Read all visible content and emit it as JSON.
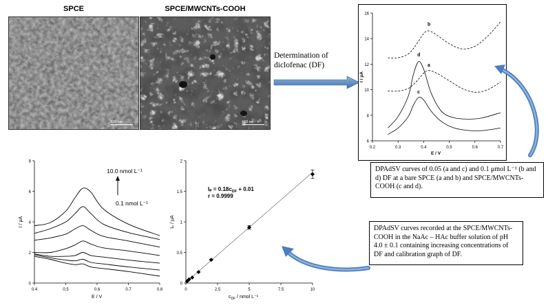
{
  "sem": {
    "left_title": "SPCE",
    "right_title": "SPCE/MWCNTs-COOH",
    "scale_label": "500 nm"
  },
  "arrow_label": "Determination of diclofenac (DF)",
  "caption_top": "DPAdSV curves of  0.05 (a and c) and 0.1 μmol  L⁻¹ (b and d) DF  at a bare SPCE (a and b) and SPCE/MWCNTs-COOH (c and d).",
  "caption_bottom": "DPAdSV curves recorded at the SPCE/MWCNTs-COOH in the NaAc – HAc buffer solution  of  pH 4.0 ± 0.1 containing increasing concentrations of DF and calibration graph of DF.",
  "charts": {
    "top": {
      "ylabel": "I / μA",
      "xlabel": "E / V",
      "xticks": [
        "0.2",
        "0.3",
        "0.4",
        "0.5",
        "0.6",
        "0.7"
      ],
      "yticks": [
        "6",
        "8",
        "10",
        "12",
        "14",
        "16"
      ],
      "labels": {
        "a": "a",
        "b": "b",
        "c": "c",
        "d": "d"
      }
    },
    "left": {
      "ylabel": "I / μA",
      "xlabel": "E / V",
      "xticks": [
        "0.4",
        "0.5",
        "0.6",
        "0.7",
        "0.8"
      ],
      "yticks": [
        "0",
        "2",
        "4",
        "6",
        "8"
      ],
      "annot_high": "10.0 nmol  L⁻¹",
      "annot_low": "0.1 nmol  L⁻¹"
    },
    "calib": {
      "ylabel": "Iₚ / μA",
      "xlabel": "c",
      "xlabel_sub": "DF",
      "xlabel_rest": " / nmol L⁻¹",
      "xticks": [
        "0",
        "2.5",
        "5",
        "7.5",
        "10"
      ],
      "yticks": [
        "0",
        "0.5",
        "1",
        "1.5",
        "2"
      ],
      "eq_main": "Iₚ = 0.18c",
      "eq_sub": "DF",
      "eq_rest": " + 0.01",
      "r": "r = 0.9999"
    }
  },
  "chart_data": [
    {
      "type": "line",
      "xlim": [
        0.2,
        0.7
      ],
      "ylim": [
        6,
        16
      ],
      "series": [
        {
          "name": "a",
          "style": "dashed",
          "x": [
            0.26,
            0.3,
            0.34,
            0.37,
            0.4,
            0.42,
            0.45,
            0.5,
            0.55,
            0.6,
            0.65,
            0.7
          ],
          "y": [
            9.9,
            9.9,
            10.1,
            10.6,
            11.3,
            11.5,
            11.3,
            10.7,
            10.1,
            9.8,
            10.0,
            10.6
          ]
        },
        {
          "name": "b",
          "style": "dashed",
          "x": [
            0.26,
            0.3,
            0.34,
            0.37,
            0.4,
            0.42,
            0.45,
            0.5,
            0.55,
            0.6,
            0.65,
            0.7
          ],
          "y": [
            12.5,
            12.5,
            12.8,
            13.5,
            14.4,
            14.6,
            14.3,
            13.6,
            13.2,
            13.4,
            14.2,
            15.3
          ]
        },
        {
          "name": "c",
          "style": "solid",
          "x": [
            0.26,
            0.3,
            0.34,
            0.36,
            0.38,
            0.4,
            0.43,
            0.47,
            0.52,
            0.58,
            0.63,
            0.7
          ],
          "y": [
            6.5,
            7.0,
            7.9,
            8.8,
            9.4,
            9.2,
            8.3,
            7.5,
            7.0,
            6.8,
            6.8,
            7.0
          ]
        },
        {
          "name": "d",
          "style": "solid",
          "x": [
            0.26,
            0.3,
            0.34,
            0.36,
            0.38,
            0.4,
            0.43,
            0.47,
            0.52,
            0.58,
            0.63,
            0.7
          ],
          "y": [
            7.0,
            7.9,
            9.5,
            11.2,
            12.2,
            11.6,
            9.7,
            8.3,
            7.8,
            7.7,
            7.8,
            8.2
          ]
        }
      ]
    },
    {
      "type": "line",
      "xlim": [
        0.4,
        0.8
      ],
      "ylim": [
        0,
        8
      ],
      "x": [
        0.4,
        0.45,
        0.5,
        0.53,
        0.555,
        0.58,
        0.62,
        0.7,
        0.8
      ],
      "series": [
        {
          "values": [
            1.75,
            1.55,
            1.3,
            1.2,
            1.25,
            1.05,
            0.95,
            0.75,
            0.45
          ]
        },
        {
          "values": [
            1.85,
            1.65,
            1.5,
            1.45,
            1.55,
            1.35,
            1.25,
            1.05,
            0.85
          ]
        },
        {
          "values": [
            1.9,
            1.75,
            1.75,
            1.8,
            2.0,
            1.8,
            1.7,
            1.5,
            1.3
          ]
        },
        {
          "values": [
            2.0,
            2.0,
            2.25,
            2.5,
            2.75,
            2.55,
            2.3,
            2.1,
            1.8
          ]
        },
        {
          "values": [
            2.8,
            2.95,
            3.2,
            3.55,
            3.75,
            3.45,
            3.05,
            2.75,
            2.35
          ]
        },
        {
          "values": [
            3.25,
            3.55,
            4.0,
            4.55,
            5.0,
            4.55,
            3.85,
            3.3,
            2.85
          ]
        },
        {
          "values": [
            3.75,
            3.95,
            4.7,
            5.6,
            6.2,
            5.95,
            4.85,
            3.85,
            3.1
          ]
        }
      ]
    },
    {
      "type": "scatter",
      "xlim": [
        0,
        10
      ],
      "ylim": [
        0,
        2
      ],
      "x": [
        0.1,
        0.25,
        0.5,
        1,
        2,
        5,
        10
      ],
      "y": [
        0.03,
        0.06,
        0.09,
        0.18,
        0.38,
        0.91,
        1.78
      ],
      "error": [
        0,
        0,
        0,
        0,
        0.01,
        0.03,
        0.07
      ],
      "fit": {
        "slope": 0.18,
        "intercept": 0.01
      }
    }
  ]
}
